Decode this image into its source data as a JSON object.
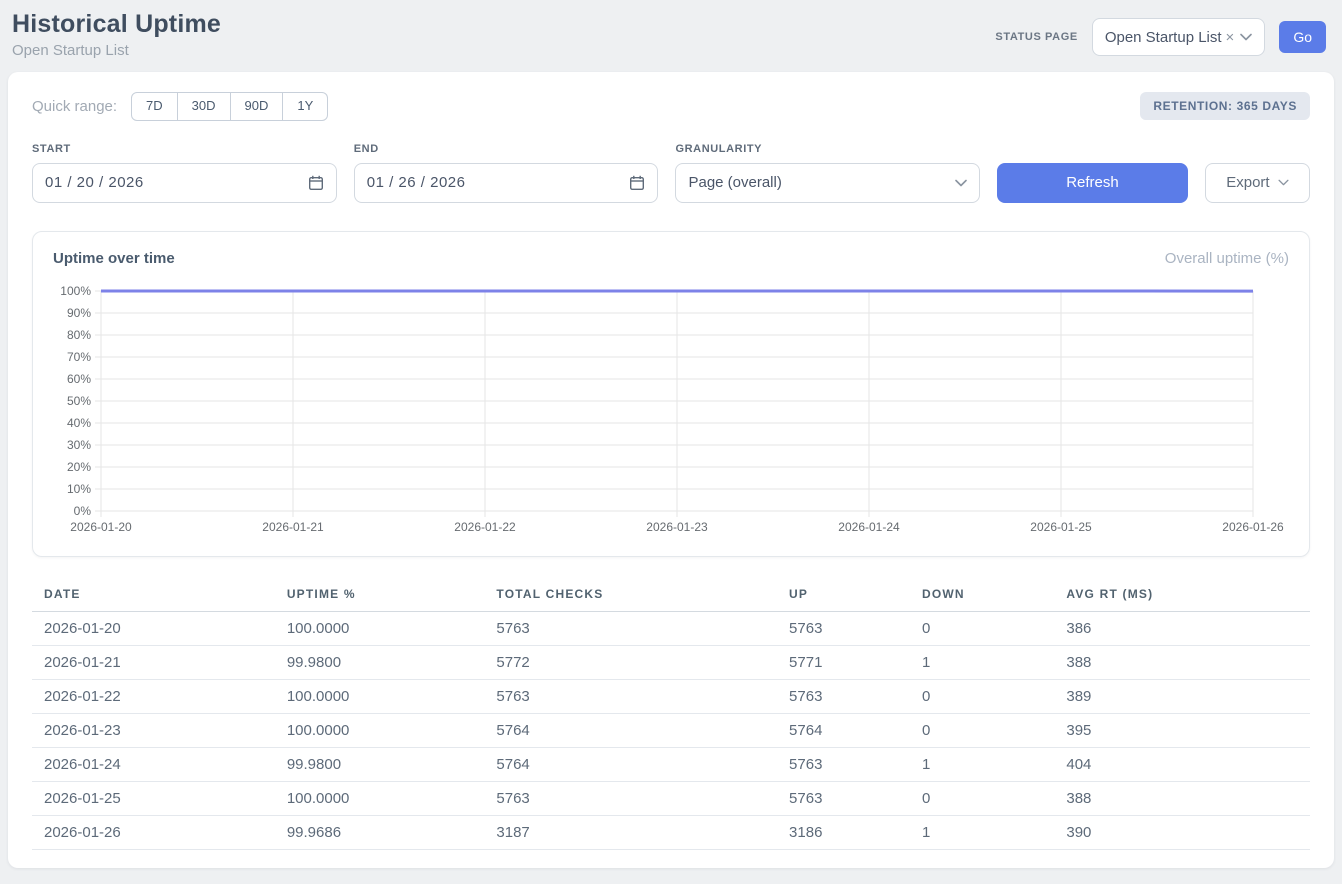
{
  "header": {
    "title": "Historical Uptime",
    "subtitle": "Open Startup List",
    "status_page_label": "STATUS PAGE",
    "status_page_value": "Open Startup List",
    "clear_icon": "×",
    "go_label": "Go"
  },
  "filters": {
    "quick_range_label": "Quick range:",
    "quick_ranges": [
      "7D",
      "30D",
      "90D",
      "1Y"
    ],
    "retention_badge": "RETENTION: 365 DAYS",
    "start_label": "START",
    "start_value": "01 / 20 / 2026",
    "end_label": "END",
    "end_value": "01 / 26 / 2026",
    "granularity_label": "GRANULARITY",
    "granularity_value": "Page (overall)",
    "refresh_label": "Refresh",
    "export_label": "Export"
  },
  "chart": {
    "title": "Uptime over time",
    "legend": "Overall uptime (%)"
  },
  "chart_data": {
    "type": "line",
    "x": [
      "2026-01-20",
      "2026-01-21",
      "2026-01-22",
      "2026-01-23",
      "2026-01-24",
      "2026-01-25",
      "2026-01-26"
    ],
    "series": [
      {
        "name": "Overall uptime (%)",
        "values": [
          100.0,
          99.98,
          100.0,
          100.0,
          99.98,
          100.0,
          99.9686
        ]
      }
    ],
    "ylim": [
      0,
      100
    ],
    "y_tick_step": 10,
    "y_tick_suffix": "%",
    "grid": true,
    "legend_position": "top-right",
    "line_color": "#7d82e8",
    "grid_color": "#e6e6e6",
    "tick_label_color": "#666b70"
  },
  "table": {
    "columns": [
      "DATE",
      "UPTIME %",
      "TOTAL CHECKS",
      "UP",
      "DOWN",
      "AVG RT (MS)"
    ],
    "rows": [
      [
        "2026-01-20",
        "100.0000",
        "5763",
        "5763",
        "0",
        "386"
      ],
      [
        "2026-01-21",
        "99.9800",
        "5772",
        "5771",
        "1",
        "388"
      ],
      [
        "2026-01-22",
        "100.0000",
        "5763",
        "5763",
        "0",
        "389"
      ],
      [
        "2026-01-23",
        "100.0000",
        "5764",
        "5764",
        "0",
        "395"
      ],
      [
        "2026-01-24",
        "99.9800",
        "5764",
        "5763",
        "1",
        "404"
      ],
      [
        "2026-01-25",
        "100.0000",
        "5763",
        "5763",
        "0",
        "388"
      ],
      [
        "2026-01-26",
        "99.9686",
        "3187",
        "3186",
        "1",
        "390"
      ]
    ]
  },
  "colors": {
    "accent_blue": "#5b7ce8",
    "line_indigo": "#7d82e8",
    "page_bg": "#eef0f2",
    "badge_bg": "#e4e8ef",
    "badge_text": "#5d7190"
  }
}
